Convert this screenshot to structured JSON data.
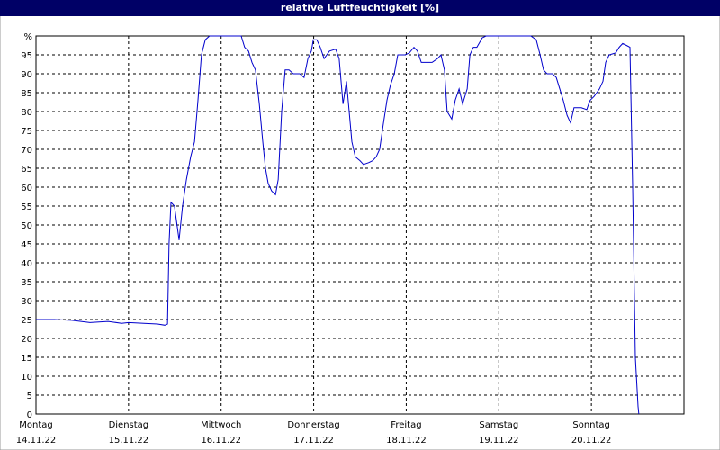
{
  "chart_data": {
    "type": "line",
    "title": "relative Luftfeuchtigkeit [%]",
    "xlim": [
      0,
      168
    ],
    "xticks": [
      {
        "value": 0,
        "label": "Montag"
      },
      {
        "value": 24,
        "label": "Dienstag"
      },
      {
        "value": 48,
        "label": "Mittwoch"
      },
      {
        "value": 72,
        "label": "Donnerstag"
      },
      {
        "value": 96,
        "label": "Freitag"
      },
      {
        "value": 120,
        "label": "Samstag"
      },
      {
        "value": 144,
        "label": "Sonntag"
      },
      168
    ],
    "xtick_dates": [
      "14.11.22",
      "15.11.22",
      "16.11.22",
      "17.11.22",
      "18.11.22",
      "19.11.22",
      "20.11.22"
    ],
    "ylim": [
      0,
      100
    ],
    "yticks": [
      0,
      5,
      10,
      15,
      20,
      25,
      30,
      35,
      40,
      45,
      50,
      55,
      60,
      65,
      70,
      75,
      80,
      85,
      90,
      95,
      {
        "value": 100,
        "label": "%"
      }
    ],
    "grid": true,
    "color": "#0000cc",
    "x": [
      0,
      4.7,
      9.3,
      14,
      18.7,
      22.2,
      24,
      28,
      31.5,
      33.4,
      34.1,
      34.5,
      35,
      35.9,
      37.1,
      38,
      39,
      40.1,
      41.1,
      42,
      42.9,
      43.9,
      45,
      46.7,
      51.3,
      53.2,
      54.1,
      55.1,
      56,
      56.9,
      57.9,
      58.8,
      59.5,
      60.2,
      61.1,
      62.1,
      62.8,
      63.7,
      64.6,
      65.6,
      66.7,
      68.4,
      69.5,
      70.5,
      71.4,
      71.9,
      72.8,
      73.7,
      74.7,
      76.1,
      77.7,
      78.6,
      79.6,
      80.5,
      81.2,
      81.9,
      82.8,
      84,
      84.9,
      86.3,
      87.3,
      88.2,
      89.1,
      90.1,
      91,
      91.9,
      92.9,
      93.8,
      95.7,
      96.8,
      98,
      98.9,
      99.9,
      100.8,
      102.7,
      104.1,
      105,
      105.9,
      106.6,
      107.8,
      108.7,
      109.7,
      110.6,
      111.8,
      112.5,
      113.4,
      114.3,
      115.7,
      116.7,
      121.3,
      128.3,
      129.7,
      130.7,
      131.6,
      132.5,
      133.9,
      134.9,
      135.8,
      136.7,
      137.7,
      138.6,
      139.5,
      140.5,
      141.4,
      142.8,
      143.3,
      143.7,
      144.7,
      146.1,
      147,
      147.7,
      148.6,
      150.3,
      151.2,
      152.1,
      153.1,
      154,
      154.7,
      155.4,
      156.1,
      156.3
    ],
    "values": [
      25,
      25,
      24.8,
      24.2,
      24.5,
      24,
      24.2,
      24,
      23.8,
      23.5,
      23.8,
      45,
      56,
      55,
      46,
      55,
      62,
      68,
      72,
      83,
      95,
      99,
      100,
      100,
      100,
      100,
      97,
      96,
      93,
      91,
      82,
      72,
      65,
      61,
      59,
      58,
      62,
      80,
      91,
      91,
      90,
      90,
      89,
      94,
      96,
      99,
      99,
      97,
      94,
      96,
      96.5,
      94,
      82,
      88,
      80,
      72,
      68,
      67,
      66,
      66.5,
      67,
      68,
      70,
      77,
      83,
      87,
      90,
      95,
      95,
      95.5,
      97,
      96,
      93,
      93,
      93,
      94,
      95,
      91,
      80,
      78,
      83,
      86,
      82,
      86,
      95,
      97,
      97,
      99.5,
      100,
      100,
      100,
      99,
      95,
      91,
      90,
      90,
      89,
      86,
      83,
      79,
      77,
      81,
      81,
      81,
      80.5,
      82,
      83,
      84,
      86,
      88,
      93,
      95,
      95.5,
      97,
      98,
      97.5,
      97,
      60,
      15,
      2,
      0
    ]
  }
}
